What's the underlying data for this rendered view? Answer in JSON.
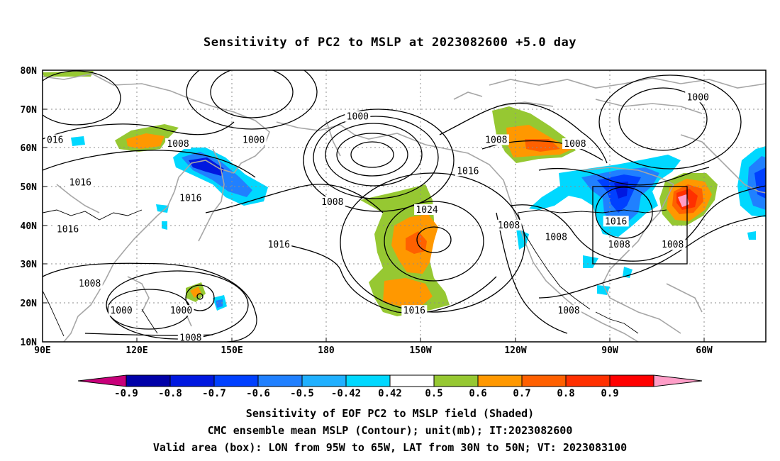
{
  "title": "Sensitivity of PC2 to MSLP at 2023082600 +5.0 day",
  "captions": {
    "line1": "Sensitivity of EOF PC2 to MSLP field (Shaded)",
    "line2": "CMC ensemble mean MSLP (Contour); unit(mb); IT:2023082600",
    "line3": "Valid area (box): LON from 95W to 65W, LAT from 30N to 50N; VT: 2023083100"
  },
  "chart_data": {
    "type": "heatmap",
    "x_ticks": [
      "90E",
      "120E",
      "150E",
      "180",
      "150W",
      "120W",
      "90W",
      "60W"
    ],
    "y_ticks": [
      "10N",
      "20N",
      "30N",
      "40N",
      "50N",
      "60N",
      "70N",
      "80N"
    ],
    "colorbar": {
      "labels": [
        "-0.9",
        "-0.8",
        "-0.7",
        "-0.6",
        "-0.5",
        "-0.42",
        "0.42",
        "0.5",
        "0.6",
        "0.7",
        "0.8",
        "0.9"
      ],
      "colors": [
        "#c8007a",
        "#0000a8",
        "#0018e0",
        "#0040ff",
        "#2080ff",
        "#20b0ff",
        "#00d8ff",
        "#ffffff",
        "#96c832",
        "#ff9800",
        "#ff6000",
        "#ff3000",
        "#ff0000",
        "#ff9ec8"
      ]
    },
    "contour_labels": [
      {
        "text": "1000",
        "lon": -170,
        "lat": 68
      },
      {
        "text": "1000",
        "lon": -62,
        "lat": 73
      },
      {
        "text": "1000",
        "lon": 157,
        "lat": 62
      },
      {
        "text": "1008",
        "lon": 133,
        "lat": 61
      },
      {
        "text": "016",
        "lon": 94,
        "lat": 62
      },
      {
        "text": "1016",
        "lon": 102,
        "lat": 51
      },
      {
        "text": "1016",
        "lon": 137,
        "lat": 47
      },
      {
        "text": "1016",
        "lon": 98,
        "lat": 39
      },
      {
        "text": "1008",
        "lon": -178,
        "lat": 46
      },
      {
        "text": "1016",
        "lon": -135,
        "lat": 54
      },
      {
        "text": "1008",
        "lon": -126,
        "lat": 62
      },
      {
        "text": "1008",
        "lon": -101,
        "lat": 61
      },
      {
        "text": "1024",
        "lon": -148,
        "lat": 44
      },
      {
        "text": "1016",
        "lon": 165,
        "lat": 35
      },
      {
        "text": "1008",
        "lon": -122,
        "lat": 40
      },
      {
        "text": "1008",
        "lon": -107,
        "lat": 37
      },
      {
        "text": "1016",
        "lon": -88,
        "lat": 41
      },
      {
        "text": "1008",
        "lon": -87,
        "lat": 35
      },
      {
        "text": "1008",
        "lon": -70,
        "lat": 35
      },
      {
        "text": "1008",
        "lon": 105,
        "lat": 25
      },
      {
        "text": "1000",
        "lon": 115,
        "lat": 18
      },
      {
        "text": "1000",
        "lon": 134,
        "lat": 18
      },
      {
        "text": "1016",
        "lon": -152,
        "lat": 18
      },
      {
        "text": "1008",
        "lon": -103,
        "lat": 18
      },
      {
        "text": "1008",
        "lon": 137,
        "lat": 11
      }
    ],
    "valid_box": {
      "lon_min": -95,
      "lon_max": -65,
      "lat_min": 30,
      "lat_max": 50
    }
  }
}
